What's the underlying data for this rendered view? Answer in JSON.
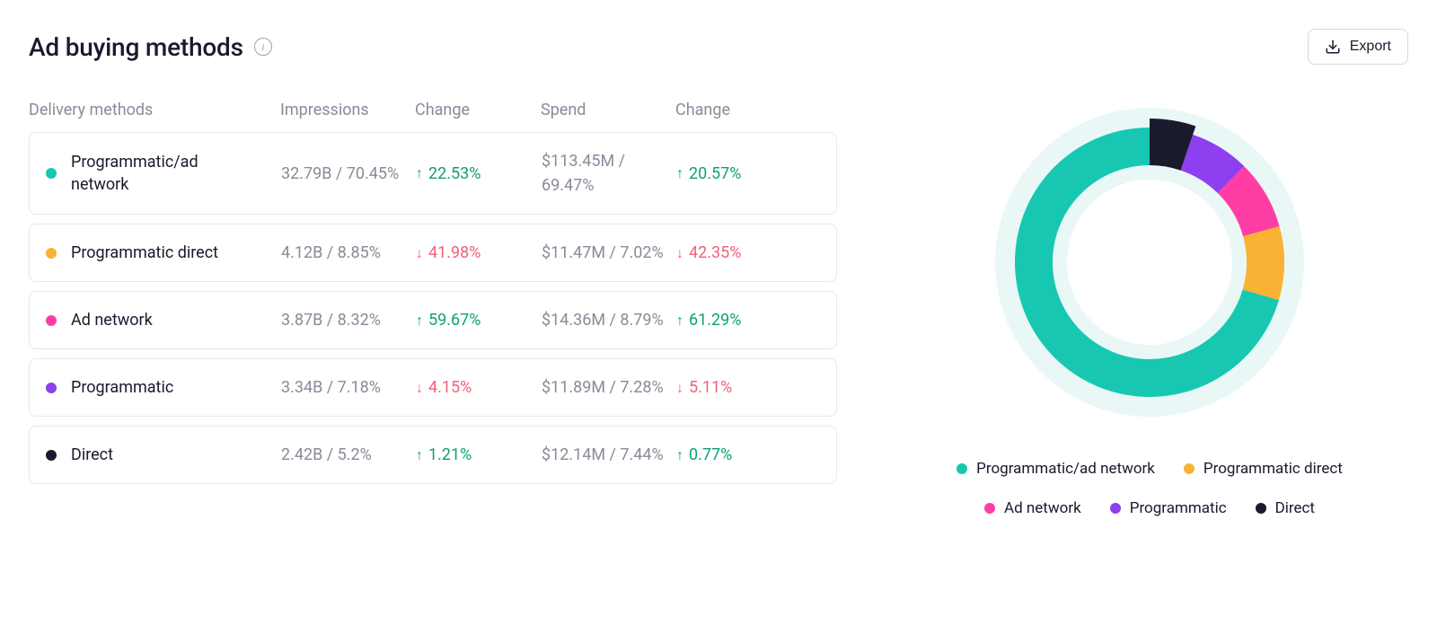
{
  "header": {
    "title": "Ad buying methods",
    "export_label": "Export"
  },
  "columns": {
    "delivery": "Delivery methods",
    "impressions": "Impressions",
    "change1": "Change",
    "spend": "Spend",
    "change2": "Change"
  },
  "colors": {
    "up": "#0fa07a",
    "down": "#f06179",
    "text_muted": "#8a8a9a",
    "border": "#e8e8ee",
    "page_bg": "#ffffff"
  },
  "rows": [
    {
      "name": "Programmatic/ad network",
      "color": "#18c7b1",
      "impressions": "32.79B / 70.45%",
      "change_impr": "22.53%",
      "change_impr_dir": "up",
      "spend": "$113.45M / 69.47%",
      "change_spend": "20.57%",
      "change_spend_dir": "up",
      "pct": 70.45
    },
    {
      "name": "Programmatic direct",
      "color": "#f9b233",
      "impressions": "4.12B / 8.85%",
      "change_impr": "41.98%",
      "change_impr_dir": "down",
      "spend": "$11.47M / 7.02%",
      "change_spend": "42.35%",
      "change_spend_dir": "down",
      "pct": 8.85
    },
    {
      "name": "Ad network",
      "color": "#ff3ea5",
      "impressions": "3.87B / 8.32%",
      "change_impr": "59.67%",
      "change_impr_dir": "up",
      "spend": "$14.36M / 8.79%",
      "change_spend": "61.29%",
      "change_spend_dir": "up",
      "pct": 8.32
    },
    {
      "name": "Programmatic",
      "color": "#8e3ff0",
      "impressions": "3.34B / 7.18%",
      "change_impr": "4.15%",
      "change_impr_dir": "down",
      "spend": "$11.89M / 7.28%",
      "change_spend": "5.11%",
      "change_spend_dir": "down",
      "pct": 7.18
    },
    {
      "name": "Direct",
      "color": "#1a1a2e",
      "impressions": "2.42B / 5.2%",
      "change_impr": "1.21%",
      "change_impr_dir": "up",
      "spend": "$12.14M / 7.44%",
      "change_spend": "0.77%",
      "change_spend_dir": "up",
      "pct": 5.2
    }
  ],
  "chart": {
    "type": "donut",
    "size": 360,
    "track_color": "#e9f8f6",
    "ring_outer_r": 150,
    "ring_inner_r": 108,
    "track_outer_r": 172,
    "track_inner_r": 92,
    "start_angle_deg": -90,
    "direction": "clockwise",
    "segment_order": [
      4,
      3,
      2,
      1,
      0
    ],
    "first_segment_highlight_extra_r": 10
  }
}
